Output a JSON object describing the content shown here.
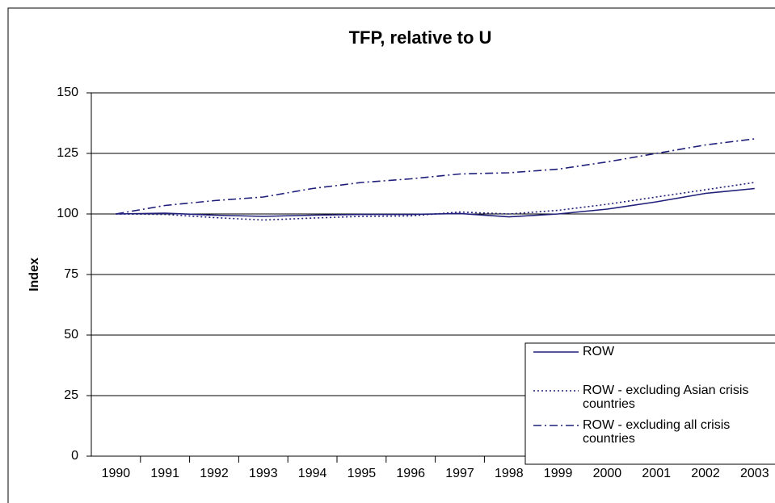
{
  "chart_data": {
    "type": "line",
    "title": "TFP, relative to U",
    "y_label": "Index",
    "categories": [
      "1990",
      "1991",
      "1992",
      "1993",
      "1994",
      "1995",
      "1996",
      "1997",
      "1998",
      "1999",
      "2000",
      "2001",
      "2002",
      "2003"
    ],
    "series": [
      {
        "name": "ROW",
        "color": "#1f1f7a",
        "dash": "solid",
        "values": [
          100,
          100.3,
          99.5,
          99,
          99.5,
          99.8,
          99.8,
          100.2,
          98.8,
          100,
          102,
          105,
          108.5,
          110.5
        ]
      },
      {
        "name": "ROW - excluding Asian crisis countries",
        "color": "#1f1f7a",
        "dash": "dotted",
        "values": [
          100,
          99.8,
          98.5,
          97.5,
          98.3,
          99,
          99.2,
          100.8,
          100,
          101.5,
          104,
          107,
          110,
          113
        ]
      },
      {
        "name": "ROW - excluding all crisis countries",
        "color": "#1f1f7a",
        "dash": "dashdot",
        "values": [
          100,
          103.5,
          105.5,
          107,
          110.5,
          113,
          114.5,
          116.5,
          117,
          118.5,
          121.5,
          125,
          128.5,
          131
        ]
      }
    ],
    "ylim": [
      0,
      150
    ],
    "yticks": [
      0,
      25,
      50,
      75,
      100,
      125,
      150
    ],
    "grid": true
  }
}
